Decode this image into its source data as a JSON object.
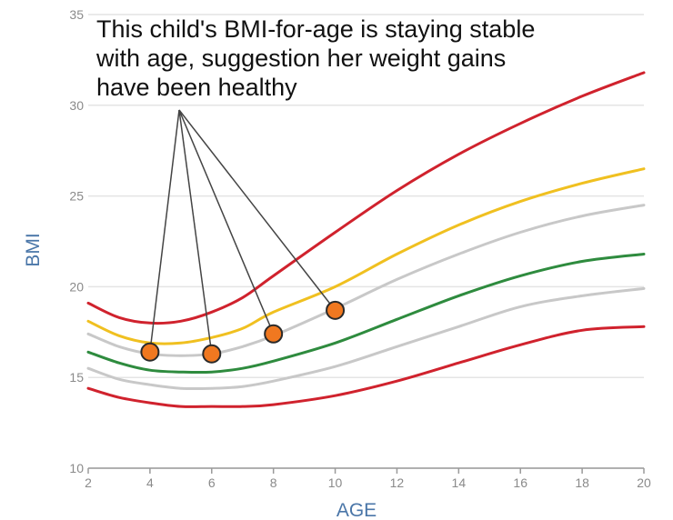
{
  "chart_data": {
    "type": "line",
    "title": "",
    "xlabel": "AGE",
    "ylabel": "BMI",
    "xlim": [
      2,
      20
    ],
    "ylim": [
      10,
      35
    ],
    "x_ticks": [
      2,
      4,
      6,
      8,
      10,
      12,
      14,
      16,
      18,
      20
    ],
    "y_ticks": [
      10,
      15,
      20,
      25,
      30,
      35
    ],
    "grid": "horizontal",
    "legend": "none",
    "series": [
      {
        "color": "#d0222d",
        "x": [
          2,
          3,
          4,
          5,
          6,
          7,
          8,
          10,
          12,
          14,
          16,
          18,
          20
        ],
        "values": [
          19.1,
          18.3,
          18.0,
          18.1,
          18.6,
          19.4,
          20.6,
          23.0,
          25.3,
          27.3,
          29.0,
          30.5,
          31.8
        ]
      },
      {
        "color": "#f0c020",
        "x": [
          2,
          3,
          4,
          5,
          6,
          7,
          8,
          10,
          12,
          14,
          16,
          18,
          20
        ],
        "values": [
          18.1,
          17.3,
          16.9,
          16.9,
          17.2,
          17.7,
          18.6,
          20.0,
          21.8,
          23.4,
          24.7,
          25.7,
          26.5
        ]
      },
      {
        "color": "#c8c8c8",
        "x": [
          2,
          3,
          4,
          5,
          6,
          7,
          8,
          10,
          12,
          14,
          16,
          18,
          20
        ],
        "values": [
          17.4,
          16.7,
          16.3,
          16.2,
          16.3,
          16.7,
          17.3,
          18.8,
          20.4,
          21.8,
          23.0,
          23.9,
          24.5
        ]
      },
      {
        "color": "#2e8b3e",
        "x": [
          2,
          3,
          4,
          5,
          6,
          7,
          8,
          10,
          12,
          14,
          16,
          18,
          20
        ],
        "values": [
          16.4,
          15.8,
          15.4,
          15.3,
          15.3,
          15.5,
          15.9,
          16.9,
          18.2,
          19.5,
          20.6,
          21.4,
          21.8
        ]
      },
      {
        "color": "#c8c8c8",
        "x": [
          2,
          3,
          4,
          5,
          6,
          7,
          8,
          10,
          12,
          14,
          16,
          18,
          20
        ],
        "values": [
          15.5,
          14.9,
          14.6,
          14.4,
          14.4,
          14.5,
          14.8,
          15.6,
          16.7,
          17.8,
          18.9,
          19.5,
          19.9
        ]
      },
      {
        "color": "#d0222d",
        "x": [
          2,
          3,
          4,
          5,
          6,
          7,
          8,
          10,
          12,
          14,
          16,
          18,
          20
        ],
        "values": [
          14.4,
          13.9,
          13.6,
          13.4,
          13.4,
          13.4,
          13.5,
          14.0,
          14.8,
          15.8,
          16.8,
          17.6,
          17.8
        ]
      }
    ],
    "points": {
      "color": "#f07820",
      "x": [
        4,
        6,
        8,
        10
      ],
      "values": [
        16.4,
        16.3,
        17.4,
        18.7
      ]
    },
    "annotation": {
      "lines": [
        "This child's BMI-for-age is staying stable",
        "with age, suggestion her weight gains",
        "have been healthy"
      ]
    }
  }
}
